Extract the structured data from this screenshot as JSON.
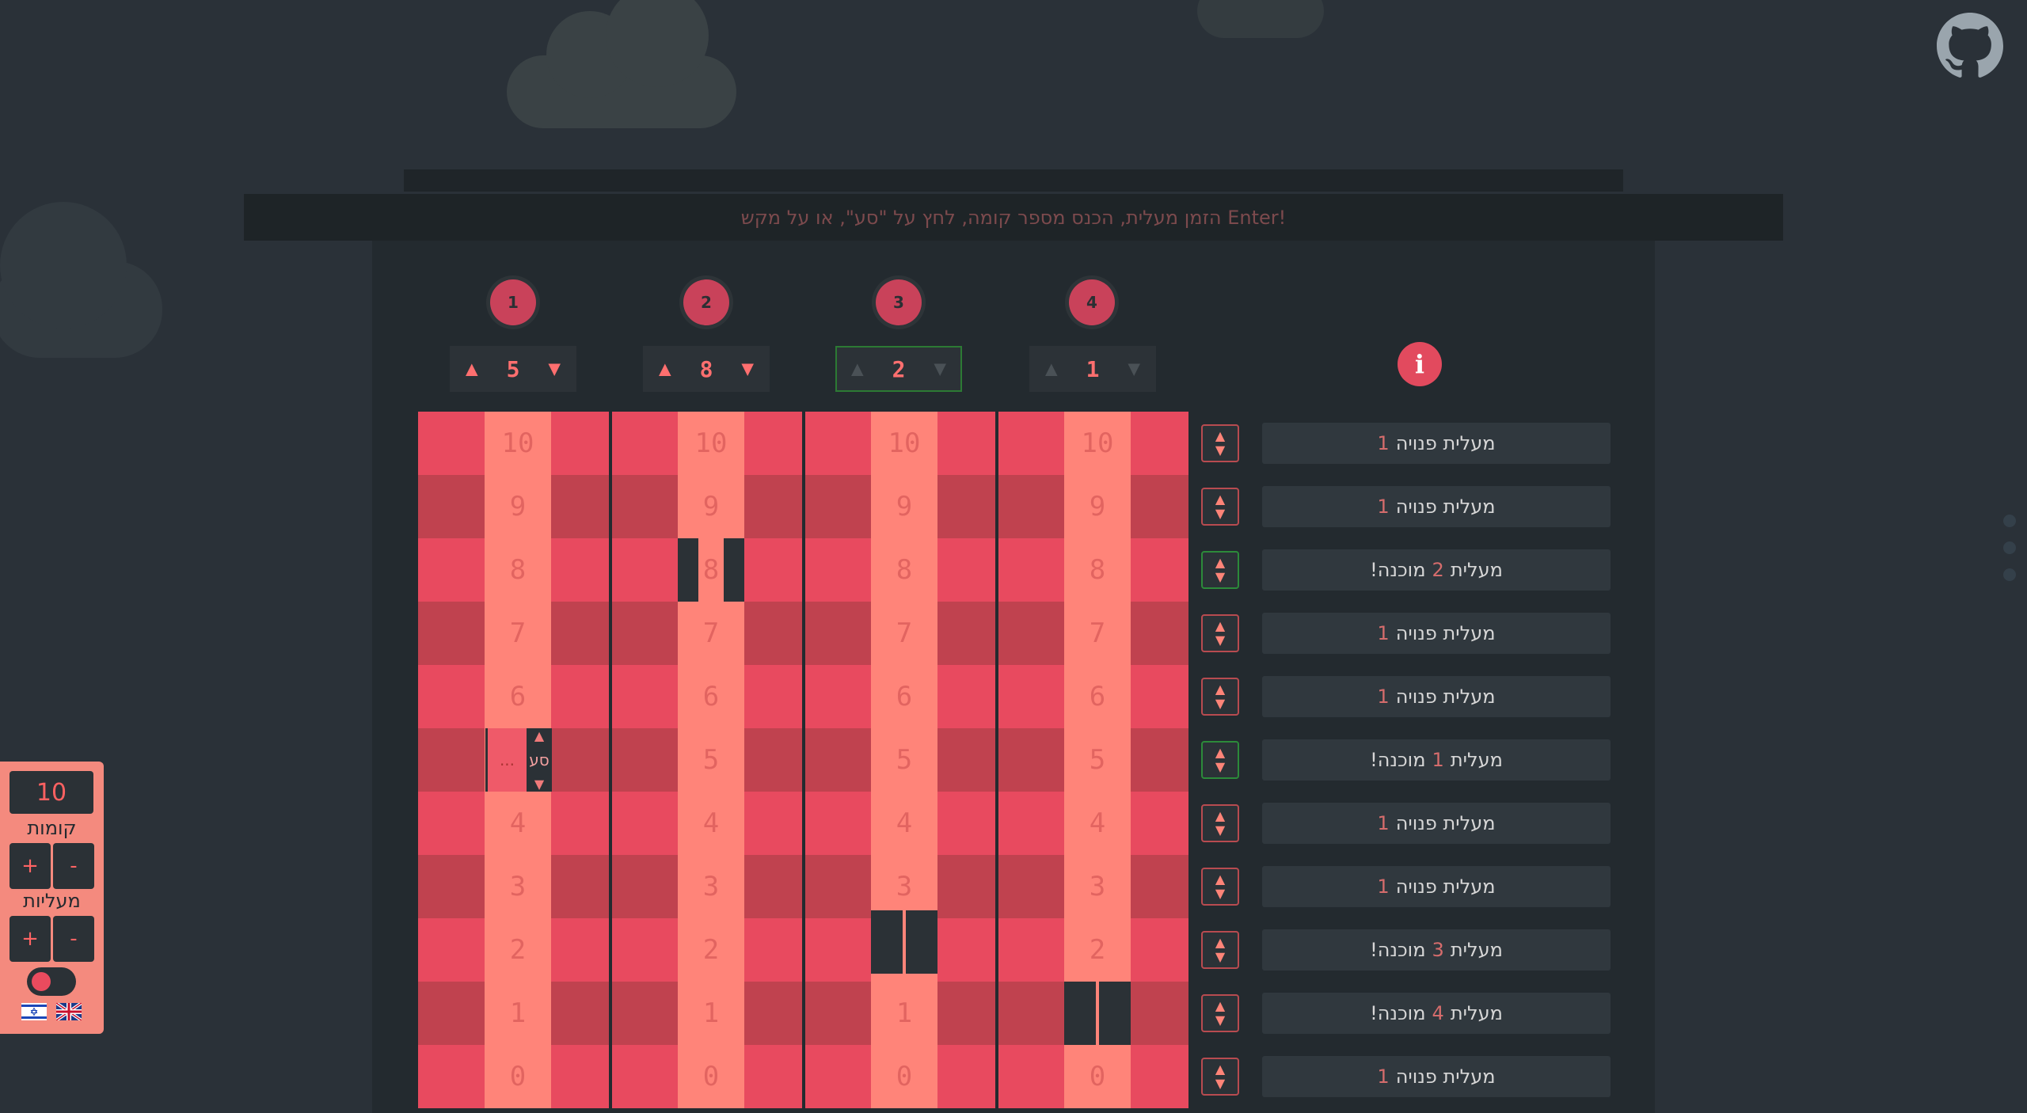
{
  "instruction": "הזמן מעלית, הכנס מספר קומה, לחץ על \"סע\", או על מקש Enter!",
  "elevators": [
    {
      "id": "1",
      "current_floor": "5",
      "state": "moving"
    },
    {
      "id": "2",
      "current_floor": "8",
      "state": "moving"
    },
    {
      "id": "3",
      "current_floor": "2",
      "state": "ready"
    },
    {
      "id": "4",
      "current_floor": "1",
      "state": "idle"
    }
  ],
  "floor_labels": [
    "10",
    "9",
    "8",
    "7",
    "6",
    "5",
    "4",
    "3",
    "2",
    "1",
    "0"
  ],
  "floor_statuses": [
    {
      "floor": "10",
      "before": "מעלית פנויה",
      "num": "1",
      "after": "",
      "ready": false
    },
    {
      "floor": "9",
      "before": "מעלית פנויה",
      "num": "1",
      "after": "",
      "ready": false
    },
    {
      "floor": "8",
      "before": "מעלית",
      "num": "2",
      "after": "מוכנה!",
      "ready": true
    },
    {
      "floor": "7",
      "before": "מעלית פנויה",
      "num": "1",
      "after": "",
      "ready": false
    },
    {
      "floor": "6",
      "before": "מעלית פנויה",
      "num": "1",
      "after": "",
      "ready": false
    },
    {
      "floor": "5",
      "before": "מעלית",
      "num": "1",
      "after": "מוכנה!",
      "ready": true
    },
    {
      "floor": "4",
      "before": "מעלית פנויה",
      "num": "1",
      "after": "",
      "ready": false
    },
    {
      "floor": "3",
      "before": "מעלית פנויה",
      "num": "1",
      "after": "",
      "ready": false
    },
    {
      "floor": "2",
      "before": "מעלית",
      "num": "3",
      "after": "מוכנה!",
      "ready": false
    },
    {
      "floor": "1",
      "before": "מעלית",
      "num": "4",
      "after": "מוכנה!",
      "ready": false
    },
    {
      "floor": "0",
      "before": "מעלית פנויה",
      "num": "1",
      "after": "",
      "ready": false
    }
  ],
  "call_widget": {
    "input_value": "...",
    "go_label": "סע",
    "up": "▲",
    "down": "▼"
  },
  "control_panel": {
    "floors_value": "10",
    "floors_label": "קומות",
    "elevators_label": "מעליות",
    "plus": "+",
    "minus": "-"
  },
  "icons": {
    "info": "i",
    "up": "▲",
    "down": "▼"
  },
  "colors": {
    "accent": "#e84a5f",
    "track": "#ff8479",
    "ready": "#2c8a3a",
    "panel": "#f48a7e"
  }
}
